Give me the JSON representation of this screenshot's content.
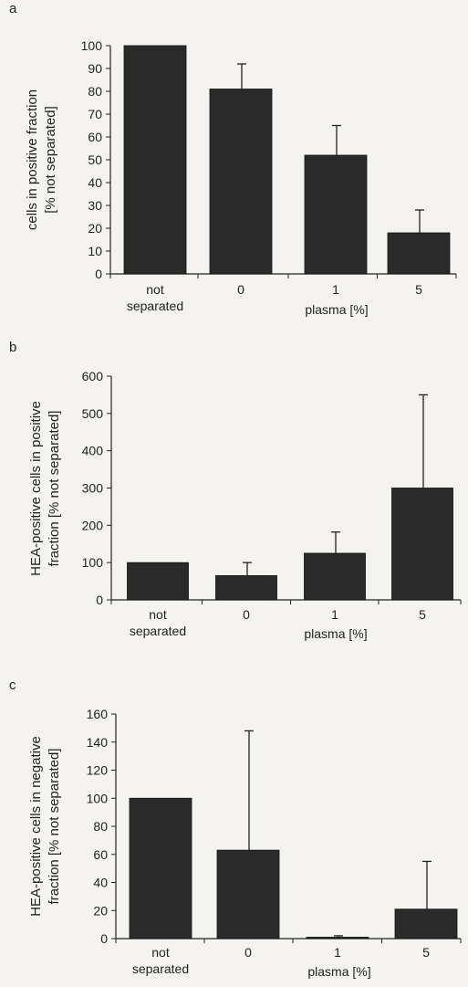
{
  "chart_data": [
    {
      "panel": "a",
      "type": "bar",
      "categories": [
        "not\nseparated",
        "0",
        "1",
        "5"
      ],
      "values": [
        100,
        81,
        52,
        18
      ],
      "errors": [
        0,
        11,
        13,
        10
      ],
      "ylabel": "cells in positive fraction\n[% not separated]",
      "xlabel": "plasma [%]",
      "ylim": [
        0,
        100
      ],
      "yticks": [
        0,
        10,
        20,
        30,
        40,
        50,
        60,
        70,
        80,
        90,
        100
      ],
      "grid": false,
      "bar_color": "#2b2a2a"
    },
    {
      "panel": "b",
      "type": "bar",
      "categories": [
        "not\nseparated",
        "0",
        "1",
        "5"
      ],
      "values": [
        100,
        65,
        125,
        300
      ],
      "errors": [
        0,
        35,
        57,
        250
      ],
      "ylabel": "HEA-positive cells in positive\nfraction [% not separated]",
      "xlabel": "plasma [%]",
      "ylim": [
        0,
        600
      ],
      "yticks": [
        0,
        100,
        200,
        300,
        400,
        500,
        600
      ],
      "grid": false,
      "bar_color": "#2b2a2a"
    },
    {
      "panel": "c",
      "type": "bar",
      "categories": [
        "not\nseparated",
        "0",
        "1",
        "5"
      ],
      "values": [
        100,
        63,
        1,
        21
      ],
      "errors": [
        0,
        85,
        1,
        34
      ],
      "ylabel": "HEA-positive cells in negative\nfraction [% not separated]",
      "xlabel": "plasma [%]",
      "ylim": [
        0,
        160
      ],
      "yticks": [
        0,
        20,
        40,
        60,
        80,
        100,
        120,
        140,
        160
      ],
      "grid": false,
      "bar_color": "#2b2a2a"
    }
  ]
}
